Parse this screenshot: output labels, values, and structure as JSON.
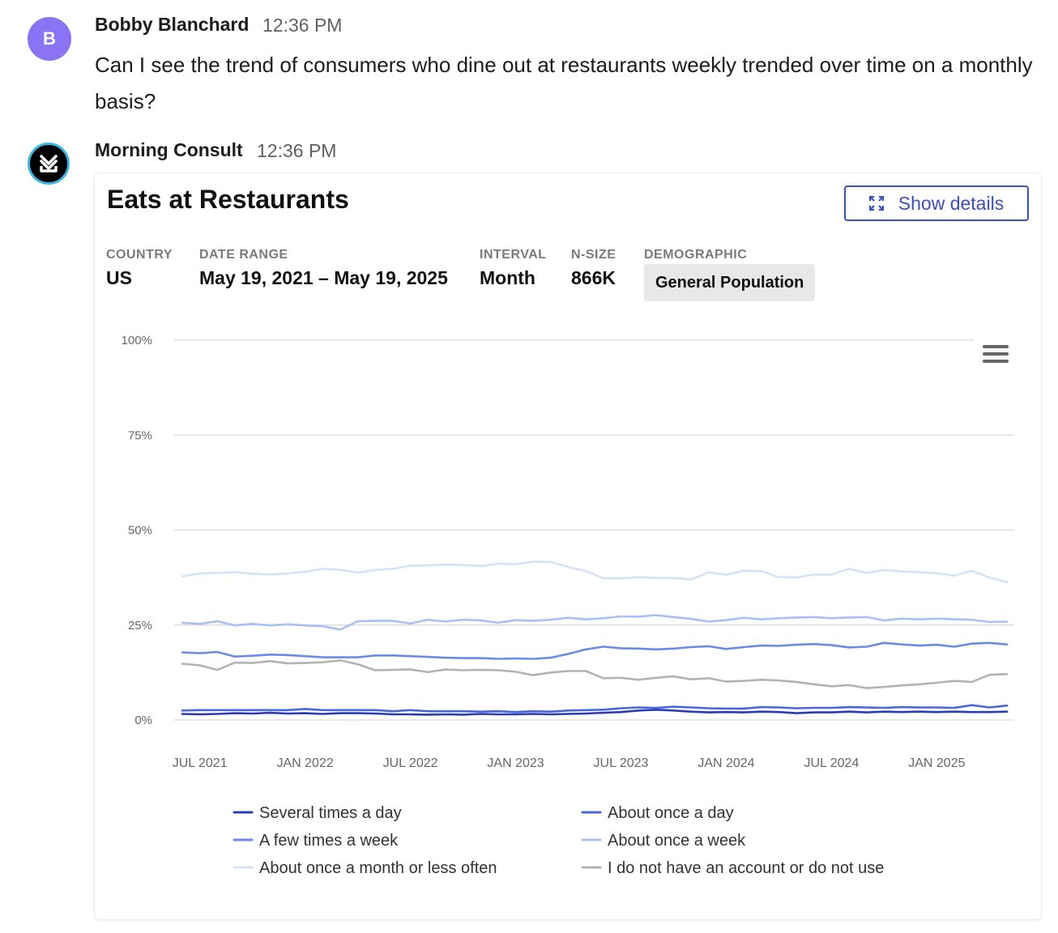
{
  "messages": [
    {
      "sender": "Bobby Blanchard",
      "time": "12:36 PM",
      "avatar_letter": "B",
      "text": "Can I see the trend of consumers who dine out at restaurants weekly trended over time on a monthly basis?"
    },
    {
      "sender": "Morning Consult",
      "time": "12:36 PM"
    }
  ],
  "card": {
    "title": "Eats at Restaurants",
    "details_label": "Show details",
    "meta": {
      "country_label": "COUNTRY",
      "country_value": "US",
      "date_label": "DATE RANGE",
      "date_value": "May 19, 2021 – May 19, 2025",
      "interval_label": "INTERVAL",
      "interval_value": "Month",
      "nsize_label": "N-SIZE",
      "nsize_value": "866K",
      "demo_label": "DEMOGRAPHIC",
      "demo_value": "General Population"
    }
  },
  "icons": {
    "expand": "expand-icon",
    "menu": "hamburger-menu-icon",
    "bot_logo": "morning-consult-logo"
  },
  "colors": {
    "accent": "#3a4fc1",
    "user_avatar": "#8b73f5",
    "bot_avatar_ring": "#38b8e0"
  },
  "chart_data": {
    "type": "line",
    "title": "",
    "xlabel": "",
    "ylabel": "",
    "ylim": [
      0,
      100
    ],
    "y_ticks": [
      "0%",
      "25%",
      "50%",
      "75%",
      "100%"
    ],
    "x_tick_labels": [
      "JUL 2021",
      "JAN 2022",
      "JUL 2022",
      "JAN 2023",
      "JUL 2023",
      "JAN 2024",
      "JUL 2024",
      "JAN 2025"
    ],
    "x": [
      "2021-06",
      "2021-07",
      "2021-08",
      "2021-09",
      "2021-10",
      "2021-11",
      "2021-12",
      "2022-01",
      "2022-02",
      "2022-03",
      "2022-04",
      "2022-05",
      "2022-06",
      "2022-07",
      "2022-08",
      "2022-09",
      "2022-10",
      "2022-11",
      "2022-12",
      "2023-01",
      "2023-02",
      "2023-03",
      "2023-04",
      "2023-05",
      "2023-06",
      "2023-07",
      "2023-08",
      "2023-09",
      "2023-10",
      "2023-11",
      "2023-12",
      "2024-01",
      "2024-02",
      "2024-03",
      "2024-04",
      "2024-05",
      "2024-06",
      "2024-07",
      "2024-08",
      "2024-09",
      "2024-10",
      "2024-11",
      "2024-12",
      "2025-01",
      "2025-02",
      "2025-03",
      "2025-04",
      "2025-05"
    ],
    "grid": true,
    "legend_position": "bottom",
    "series": [
      {
        "name": "Several times a day",
        "color": "#2a3cb5",
        "values": [
          1.6,
          1.5,
          1.6,
          1.8,
          1.7,
          1.9,
          1.7,
          1.8,
          1.6,
          1.8,
          1.8,
          1.7,
          1.5,
          1.5,
          1.4,
          1.5,
          1.4,
          1.6,
          1.5,
          1.5,
          1.6,
          1.5,
          1.6,
          1.7,
          1.9,
          2.1,
          2.5,
          2.7,
          2.5,
          2.2,
          2.0,
          2.1,
          2.0,
          2.2,
          2.1,
          1.8,
          2.0,
          2.0,
          2.2,
          2.0,
          2.2,
          2.1,
          2.2,
          2.1,
          2.2,
          2.1,
          2.1,
          2.2
        ]
      },
      {
        "name": "About once a day",
        "color": "#4a66d8",
        "values": [
          2.5,
          2.6,
          2.6,
          2.6,
          2.6,
          2.6,
          2.6,
          2.9,
          2.6,
          2.6,
          2.6,
          2.6,
          2.3,
          2.6,
          2.3,
          2.3,
          2.3,
          2.2,
          2.3,
          2.1,
          2.3,
          2.2,
          2.5,
          2.6,
          2.7,
          3.1,
          3.3,
          3.2,
          3.5,
          3.3,
          3.1,
          3.0,
          3.0,
          3.4,
          3.3,
          3.1,
          3.2,
          3.2,
          3.4,
          3.3,
          3.2,
          3.4,
          3.3,
          3.3,
          3.2,
          3.9,
          3.3,
          3.8
        ]
      },
      {
        "name": "A few times a week",
        "color": "#6b8ae6",
        "values": [
          17.8,
          17.6,
          17.9,
          16.7,
          16.9,
          17.2,
          17.1,
          16.8,
          16.5,
          16.5,
          16.5,
          17.0,
          17.0,
          16.8,
          16.6,
          16.4,
          16.3,
          16.3,
          16.1,
          16.2,
          16.1,
          16.4,
          17.4,
          18.6,
          19.3,
          18.9,
          18.8,
          18.6,
          18.8,
          19.2,
          19.4,
          18.7,
          19.2,
          19.6,
          19.5,
          19.8,
          20.0,
          19.7,
          19.1,
          19.3,
          20.3,
          19.9,
          19.6,
          19.8,
          19.3,
          20.1,
          20.3,
          19.9
        ]
      },
      {
        "name": "About once a week",
        "color": "#a9c0f5",
        "values": [
          25.6,
          25.3,
          26.0,
          24.9,
          25.3,
          24.9,
          25.2,
          24.9,
          24.7,
          23.8,
          26.0,
          26.1,
          26.1,
          25.4,
          26.4,
          25.9,
          26.4,
          26.2,
          25.6,
          26.3,
          26.1,
          26.4,
          26.9,
          26.5,
          26.8,
          27.3,
          27.2,
          27.6,
          27.1,
          26.6,
          25.9,
          26.3,
          26.9,
          26.5,
          26.8,
          27.0,
          27.1,
          26.8,
          27.0,
          27.1,
          26.2,
          26.7,
          26.5,
          26.7,
          26.5,
          26.4,
          25.8,
          25.9
        ]
      },
      {
        "name": "About once a month or less often",
        "color": "#d4e2fb",
        "values": [
          37.8,
          38.6,
          38.7,
          38.9,
          38.5,
          38.3,
          38.6,
          39.0,
          39.8,
          39.5,
          38.8,
          39.5,
          39.8,
          40.6,
          40.7,
          40.9,
          40.8,
          40.5,
          41.2,
          41.0,
          41.7,
          41.6,
          40.3,
          39.2,
          37.3,
          37.3,
          37.6,
          37.4,
          37.4,
          37.0,
          38.9,
          38.2,
          39.3,
          39.2,
          37.6,
          37.5,
          38.3,
          38.3,
          39.8,
          38.7,
          39.5,
          39.1,
          38.9,
          38.6,
          38.0,
          39.3,
          37.5,
          36.3
        ]
      },
      {
        "name": "I do not have an account or do not use",
        "color": "#b3b3b3",
        "values": [
          14.8,
          14.4,
          13.2,
          15.1,
          15.0,
          15.5,
          14.9,
          15.0,
          15.2,
          15.7,
          14.7,
          13.1,
          13.2,
          13.3,
          12.6,
          13.3,
          13.1,
          13.2,
          13.1,
          12.7,
          11.8,
          12.5,
          12.9,
          12.9,
          11.0,
          11.1,
          10.6,
          11.1,
          11.5,
          10.7,
          11.0,
          10.1,
          10.3,
          10.6,
          10.4,
          10.0,
          9.4,
          8.9,
          9.2,
          8.4,
          8.7,
          9.1,
          9.4,
          9.8,
          10.3,
          10.0,
          11.9,
          12.1
        ]
      }
    ]
  }
}
